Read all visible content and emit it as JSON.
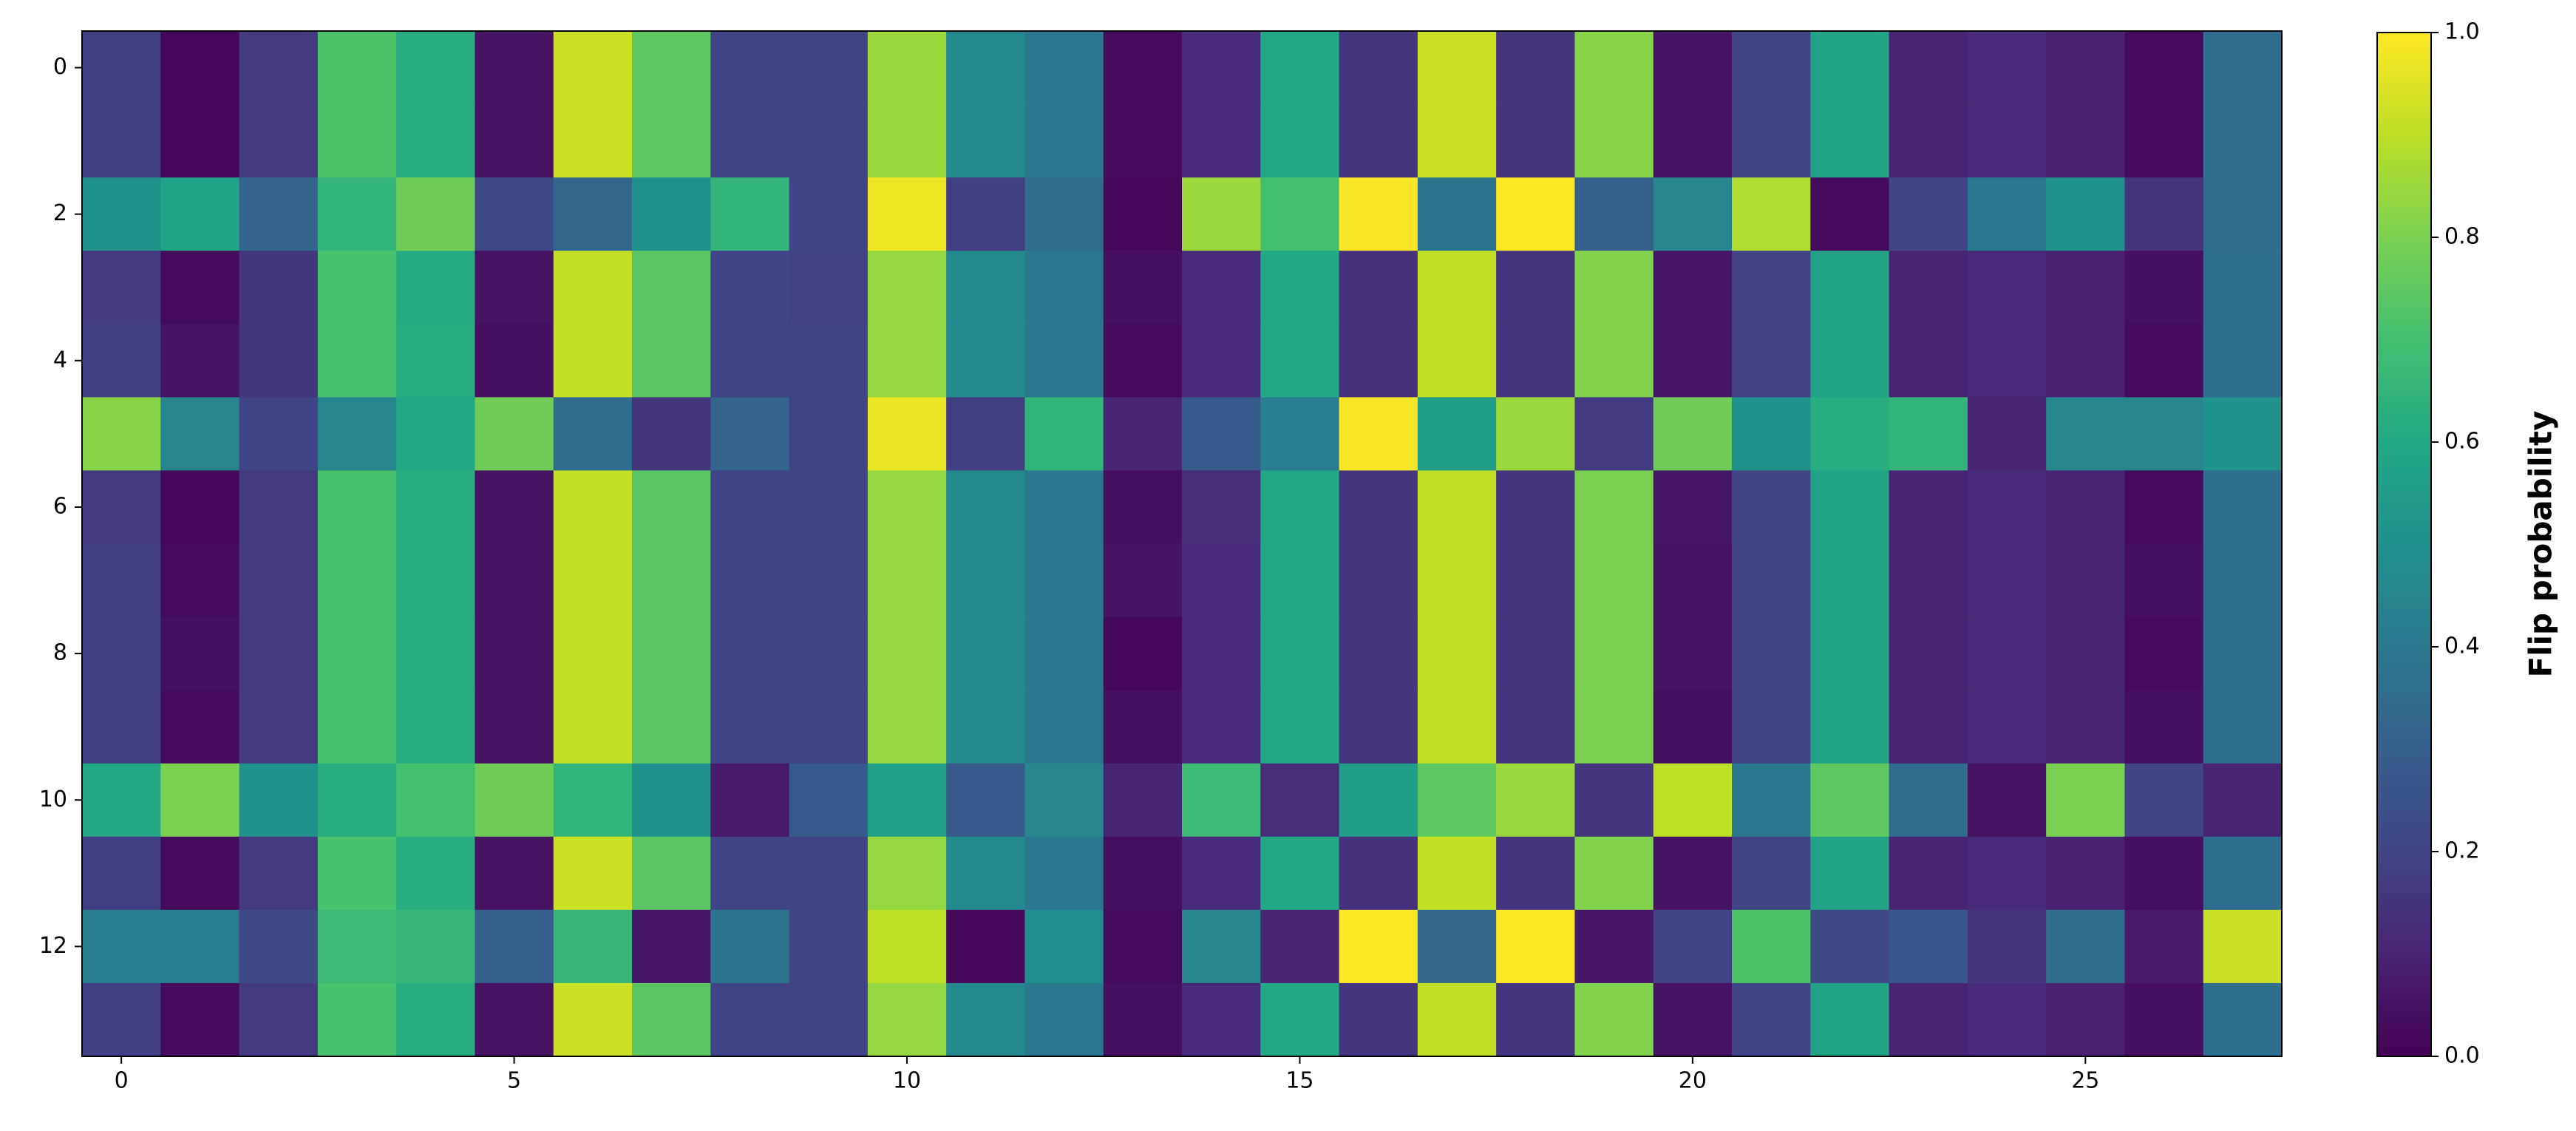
{
  "chart_data": {
    "type": "heatmap",
    "colormap": "viridis",
    "xlim": [
      -0.5,
      27.5
    ],
    "ylim": [
      13.5,
      -0.5
    ],
    "xticks": [
      0,
      5,
      10,
      15,
      20,
      25
    ],
    "yticks": [
      0,
      2,
      4,
      6,
      8,
      10,
      12
    ],
    "clim": [
      0,
      1
    ],
    "cticks": [
      {
        "value": 0,
        "label": "0.0"
      },
      {
        "value": 0.2,
        "label": "0.2"
      },
      {
        "value": 0.4,
        "label": "0.4"
      },
      {
        "value": 0.6,
        "label": "0.6"
      },
      {
        "value": 0.8,
        "label": "0.8"
      },
      {
        "value": 1,
        "label": "1.0"
      }
    ],
    "colorbar_label": "Flip probability",
    "z": [
      [
        0.18,
        0.02,
        0.17,
        0.72,
        0.62,
        0.05,
        0.92,
        0.75,
        0.2,
        0.2,
        0.85,
        0.47,
        0.4,
        0.03,
        0.12,
        0.6,
        0.15,
        0.92,
        0.15,
        0.82,
        0.05,
        0.2,
        0.58,
        0.1,
        0.12,
        0.09,
        0.03,
        0.35
      ],
      [
        0.18,
        0.02,
        0.17,
        0.72,
        0.62,
        0.05,
        0.92,
        0.75,
        0.2,
        0.2,
        0.85,
        0.47,
        0.4,
        0.03,
        0.12,
        0.6,
        0.15,
        0.92,
        0.15,
        0.82,
        0.05,
        0.2,
        0.58,
        0.1,
        0.12,
        0.09,
        0.03,
        0.35
      ],
      [
        0.5,
        0.58,
        0.32,
        0.65,
        0.78,
        0.22,
        0.33,
        0.5,
        0.65,
        0.2,
        0.98,
        0.18,
        0.35,
        0.02,
        0.85,
        0.7,
        0.99,
        0.38,
        1.0,
        0.3,
        0.45,
        0.88,
        0.03,
        0.2,
        0.4,
        0.5,
        0.15,
        0.35
      ],
      [
        0.17,
        0.03,
        0.16,
        0.71,
        0.61,
        0.05,
        0.91,
        0.74,
        0.2,
        0.19,
        0.84,
        0.47,
        0.4,
        0.04,
        0.12,
        0.6,
        0.14,
        0.91,
        0.15,
        0.81,
        0.06,
        0.19,
        0.58,
        0.1,
        0.12,
        0.09,
        0.04,
        0.36
      ],
      [
        0.18,
        0.05,
        0.16,
        0.71,
        0.62,
        0.04,
        0.91,
        0.74,
        0.2,
        0.2,
        0.84,
        0.47,
        0.4,
        0.03,
        0.12,
        0.6,
        0.14,
        0.91,
        0.15,
        0.81,
        0.06,
        0.19,
        0.58,
        0.1,
        0.12,
        0.09,
        0.03,
        0.36
      ],
      [
        0.82,
        0.45,
        0.2,
        0.45,
        0.6,
        0.78,
        0.35,
        0.15,
        0.32,
        0.2,
        0.97,
        0.18,
        0.65,
        0.1,
        0.28,
        0.42,
        0.99,
        0.55,
        0.85,
        0.17,
        0.78,
        0.5,
        0.62,
        0.65,
        0.1,
        0.45,
        0.45,
        0.5
      ],
      [
        0.17,
        0.02,
        0.17,
        0.71,
        0.62,
        0.05,
        0.91,
        0.74,
        0.2,
        0.2,
        0.84,
        0.47,
        0.4,
        0.04,
        0.13,
        0.6,
        0.15,
        0.91,
        0.15,
        0.8,
        0.06,
        0.2,
        0.58,
        0.1,
        0.12,
        0.1,
        0.03,
        0.36
      ],
      [
        0.18,
        0.03,
        0.17,
        0.71,
        0.62,
        0.05,
        0.91,
        0.74,
        0.2,
        0.2,
        0.84,
        0.47,
        0.4,
        0.05,
        0.12,
        0.6,
        0.15,
        0.91,
        0.15,
        0.8,
        0.05,
        0.2,
        0.58,
        0.1,
        0.12,
        0.1,
        0.04,
        0.36
      ],
      [
        0.18,
        0.04,
        0.17,
        0.71,
        0.62,
        0.05,
        0.91,
        0.74,
        0.2,
        0.2,
        0.84,
        0.47,
        0.4,
        0.02,
        0.12,
        0.6,
        0.15,
        0.91,
        0.15,
        0.8,
        0.05,
        0.2,
        0.58,
        0.1,
        0.12,
        0.1,
        0.03,
        0.36
      ],
      [
        0.18,
        0.03,
        0.17,
        0.71,
        0.62,
        0.05,
        0.91,
        0.74,
        0.2,
        0.2,
        0.84,
        0.47,
        0.4,
        0.04,
        0.12,
        0.6,
        0.15,
        0.91,
        0.15,
        0.8,
        0.04,
        0.2,
        0.58,
        0.1,
        0.12,
        0.1,
        0.04,
        0.36
      ],
      [
        0.6,
        0.8,
        0.5,
        0.62,
        0.7,
        0.78,
        0.65,
        0.5,
        0.07,
        0.28,
        0.57,
        0.28,
        0.45,
        0.1,
        0.68,
        0.13,
        0.55,
        0.75,
        0.85,
        0.15,
        0.9,
        0.4,
        0.75,
        0.35,
        0.05,
        0.8,
        0.2,
        0.1
      ],
      [
        0.18,
        0.03,
        0.17,
        0.71,
        0.62,
        0.05,
        0.92,
        0.74,
        0.2,
        0.2,
        0.84,
        0.47,
        0.4,
        0.04,
        0.12,
        0.6,
        0.14,
        0.91,
        0.15,
        0.81,
        0.05,
        0.2,
        0.58,
        0.1,
        0.12,
        0.09,
        0.04,
        0.36
      ],
      [
        0.42,
        0.42,
        0.22,
        0.68,
        0.66,
        0.3,
        0.66,
        0.06,
        0.38,
        0.2,
        0.9,
        0.02,
        0.48,
        0.03,
        0.45,
        0.1,
        1.0,
        0.33,
        1.0,
        0.06,
        0.2,
        0.72,
        0.22,
        0.27,
        0.15,
        0.35,
        0.07,
        0.92
      ],
      [
        0.18,
        0.03,
        0.17,
        0.71,
        0.62,
        0.05,
        0.92,
        0.74,
        0.2,
        0.2,
        0.84,
        0.47,
        0.4,
        0.04,
        0.12,
        0.6,
        0.15,
        0.91,
        0.15,
        0.81,
        0.05,
        0.2,
        0.58,
        0.1,
        0.12,
        0.09,
        0.04,
        0.36
      ]
    ]
  }
}
